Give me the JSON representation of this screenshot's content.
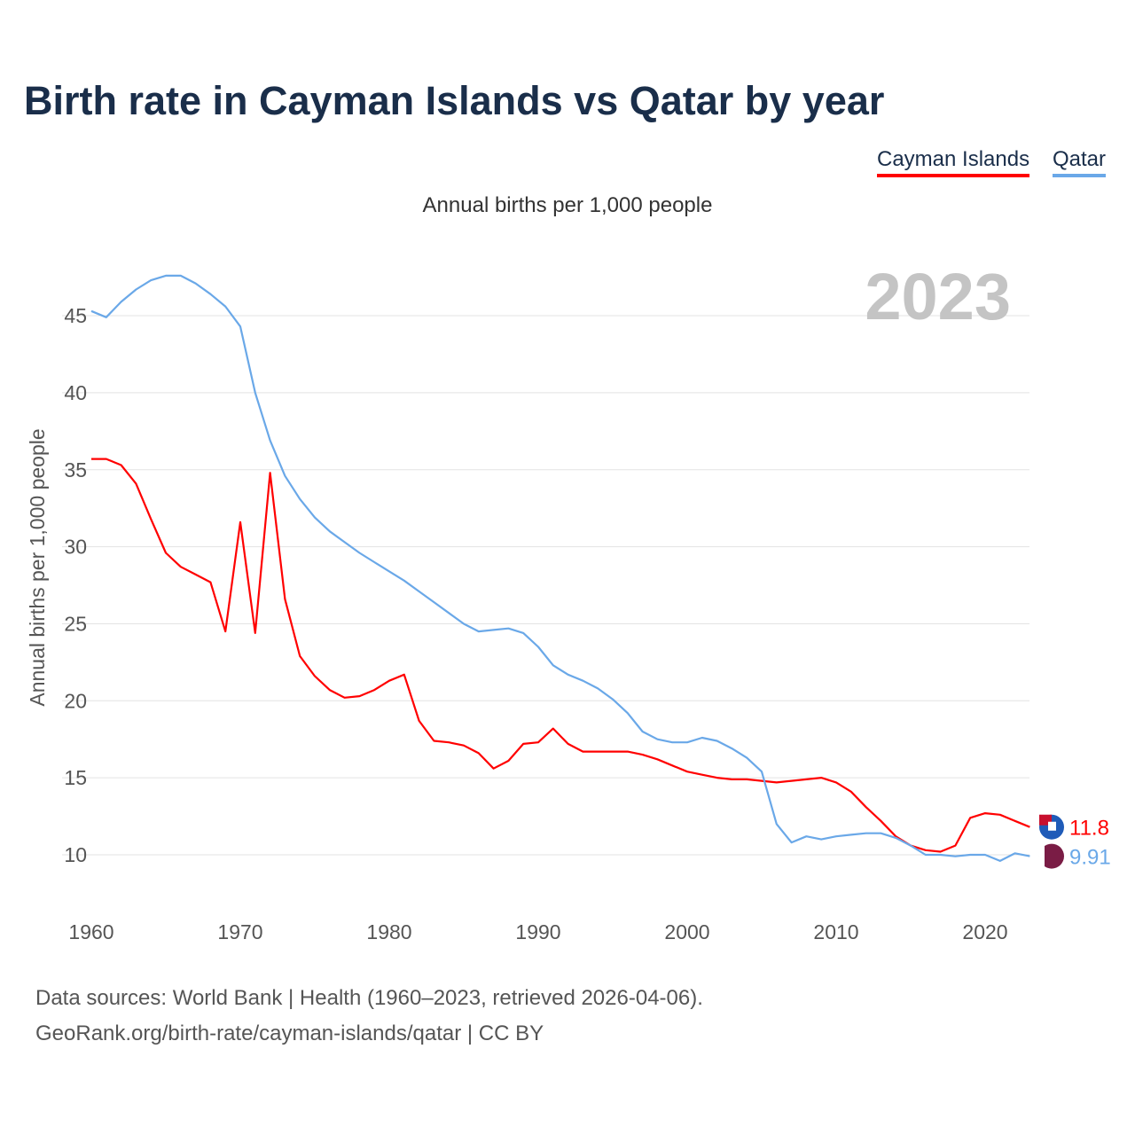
{
  "title": "Birth rate in Cayman Islands vs Qatar by year",
  "subtitle": "Annual births per 1,000 people",
  "year_watermark": "2023",
  "footer": {
    "line1": "Data sources: World Bank | Health (1960–2023, retrieved 2026-04-06).",
    "line2": "GeoRank.org/birth-rate/cayman-islands/qatar | CC BY"
  },
  "chart_data": {
    "type": "line",
    "title": "Birth rate in Cayman Islands vs Qatar by year",
    "xlabel": "",
    "ylabel": "Annual births per 1,000 people",
    "xlim": [
      1960,
      2023
    ],
    "ylim": [
      7,
      48
    ],
    "xticks": [
      1960,
      1970,
      1980,
      1990,
      2000,
      2010,
      2020
    ],
    "yticks": [
      10,
      15,
      20,
      25,
      30,
      35,
      40,
      45
    ],
    "grid": true,
    "legend": "top-right",
    "x": [
      1960,
      1961,
      1962,
      1963,
      1964,
      1965,
      1966,
      1967,
      1968,
      1969,
      1970,
      1971,
      1972,
      1973,
      1974,
      1975,
      1976,
      1977,
      1978,
      1979,
      1980,
      1981,
      1982,
      1983,
      1984,
      1985,
      1986,
      1987,
      1988,
      1989,
      1990,
      1991,
      1992,
      1993,
      1994,
      1995,
      1996,
      1997,
      1998,
      1999,
      2000,
      2001,
      2002,
      2003,
      2004,
      2005,
      2006,
      2007,
      2008,
      2009,
      2010,
      2011,
      2012,
      2013,
      2014,
      2015,
      2016,
      2017,
      2018,
      2019,
      2020,
      2021,
      2022,
      2023
    ],
    "series": [
      {
        "name": "Cayman Islands",
        "color": "#ff0000",
        "end_label": "11.8",
        "values": [
          35.7,
          35.7,
          35.3,
          34.1,
          31.8,
          29.6,
          28.7,
          28.2,
          27.7,
          24.5,
          31.6,
          24.4,
          34.8,
          26.6,
          22.9,
          21.6,
          20.7,
          20.2,
          20.3,
          20.7,
          21.3,
          21.7,
          18.7,
          17.4,
          17.3,
          17.1,
          16.6,
          15.6,
          16.1,
          17.2,
          17.3,
          18.2,
          17.2,
          16.7,
          16.7,
          16.7,
          16.7,
          16.5,
          16.2,
          15.8,
          15.4,
          15.2,
          15.0,
          14.9,
          14.9,
          14.8,
          14.7,
          14.8,
          14.9,
          15.0,
          14.7,
          14.1,
          13.1,
          12.2,
          11.2,
          10.6,
          10.3,
          10.2,
          10.6,
          12.4,
          12.7,
          12.6,
          12.2,
          11.8
        ]
      },
      {
        "name": "Qatar",
        "color": "#6aa8e8",
        "end_label": "9.91",
        "values": [
          45.3,
          44.9,
          45.9,
          46.7,
          47.3,
          47.6,
          47.6,
          47.1,
          46.4,
          45.6,
          44.3,
          40.0,
          36.9,
          34.6,
          33.1,
          31.9,
          31.0,
          30.3,
          29.6,
          29.0,
          28.4,
          27.8,
          27.1,
          26.4,
          25.7,
          25.0,
          24.5,
          24.6,
          24.7,
          24.4,
          23.5,
          22.3,
          21.7,
          21.3,
          20.8,
          20.1,
          19.2,
          18.0,
          17.5,
          17.3,
          17.3,
          17.6,
          17.4,
          16.9,
          16.3,
          15.4,
          12.0,
          10.8,
          11.2,
          11.0,
          11.2,
          11.3,
          11.4,
          11.4,
          11.1,
          10.6,
          10.0,
          10.0,
          9.9,
          10.0,
          10.0,
          9.6,
          10.1,
          9.91
        ]
      }
    ]
  }
}
